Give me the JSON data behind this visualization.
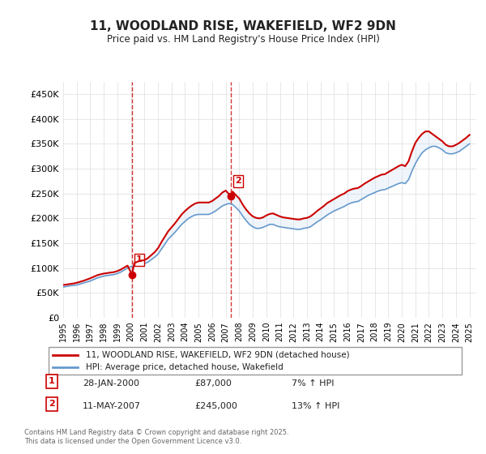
{
  "title": "11, WOODLAND RISE, WAKEFIELD, WF2 9DN",
  "subtitle": "Price paid vs. HM Land Registry's House Price Index (HPI)",
  "xlabel": "",
  "ylabel": "",
  "ylim": [
    0,
    475000
  ],
  "yticks": [
    0,
    50000,
    100000,
    150000,
    200000,
    250000,
    300000,
    350000,
    400000,
    450000
  ],
  "ytick_labels": [
    "£0",
    "£50K",
    "£100K",
    "£150K",
    "£200K",
    "£250K",
    "£300K",
    "£350K",
    "£400K",
    "£450K"
  ],
  "line1_color": "#cc0000",
  "line2_color": "#6699cc",
  "fill_color": "#cce0f5",
  "vline_color": "#cc0000",
  "legend_label1": "11, WOODLAND RISE, WAKEFIELD, WF2 9DN (detached house)",
  "legend_label2": "HPI: Average price, detached house, Wakefield",
  "transaction1_label": "1",
  "transaction1_date": "28-JAN-2000",
  "transaction1_price": "£87,000",
  "transaction1_hpi": "7% ↑ HPI",
  "transaction2_label": "2",
  "transaction2_date": "11-MAY-2007",
  "transaction2_price": "£245,000",
  "transaction2_hpi": "13% ↑ HPI",
  "footer": "Contains HM Land Registry data © Crown copyright and database right 2025.\nThis data is licensed under the Open Government Licence v3.0.",
  "hpi_x": [
    1995.0,
    1995.25,
    1995.5,
    1995.75,
    1996.0,
    1996.25,
    1996.5,
    1996.75,
    1997.0,
    1997.25,
    1997.5,
    1997.75,
    1998.0,
    1998.25,
    1998.5,
    1998.75,
    1999.0,
    1999.25,
    1999.5,
    1999.75,
    2000.0,
    2000.25,
    2000.5,
    2000.75,
    2001.0,
    2001.25,
    2001.5,
    2001.75,
    2002.0,
    2002.25,
    2002.5,
    2002.75,
    2003.0,
    2003.25,
    2003.5,
    2003.75,
    2004.0,
    2004.25,
    2004.5,
    2004.75,
    2005.0,
    2005.25,
    2005.5,
    2005.75,
    2006.0,
    2006.25,
    2006.5,
    2006.75,
    2007.0,
    2007.25,
    2007.5,
    2007.75,
    2008.0,
    2008.25,
    2008.5,
    2008.75,
    2009.0,
    2009.25,
    2009.5,
    2009.75,
    2010.0,
    2010.25,
    2010.5,
    2010.75,
    2011.0,
    2011.25,
    2011.5,
    2011.75,
    2012.0,
    2012.25,
    2012.5,
    2012.75,
    2013.0,
    2013.25,
    2013.5,
    2013.75,
    2014.0,
    2014.25,
    2014.5,
    2014.75,
    2015.0,
    2015.25,
    2015.5,
    2015.75,
    2016.0,
    2016.25,
    2016.5,
    2016.75,
    2017.0,
    2017.25,
    2017.5,
    2017.75,
    2018.0,
    2018.25,
    2018.5,
    2018.75,
    2019.0,
    2019.25,
    2019.5,
    2019.75,
    2020.0,
    2020.25,
    2020.5,
    2020.75,
    2021.0,
    2021.25,
    2021.5,
    2021.75,
    2022.0,
    2022.25,
    2022.5,
    2022.75,
    2023.0,
    2023.25,
    2023.5,
    2023.75,
    2024.0,
    2024.25,
    2024.5,
    2024.75,
    2025.0
  ],
  "hpi_y": [
    62000,
    63000,
    64500,
    65000,
    66000,
    68000,
    70000,
    72000,
    74000,
    77000,
    80000,
    82000,
    84000,
    85000,
    86000,
    87000,
    89000,
    92000,
    96000,
    100000,
    103000,
    105000,
    107000,
    108000,
    109000,
    112000,
    117000,
    122000,
    128000,
    138000,
    148000,
    158000,
    165000,
    172000,
    180000,
    188000,
    194000,
    200000,
    204000,
    207000,
    208000,
    208000,
    208000,
    208000,
    211000,
    215000,
    220000,
    225000,
    228000,
    230000,
    228000,
    222000,
    215000,
    205000,
    196000,
    188000,
    183000,
    180000,
    180000,
    182000,
    185000,
    188000,
    188000,
    185000,
    183000,
    182000,
    181000,
    180000,
    179000,
    178000,
    178000,
    180000,
    181000,
    183000,
    188000,
    193000,
    197000,
    202000,
    207000,
    211000,
    215000,
    218000,
    221000,
    224000,
    228000,
    231000,
    233000,
    234000,
    238000,
    242000,
    246000,
    249000,
    252000,
    255000,
    257000,
    258000,
    261000,
    264000,
    267000,
    270000,
    272000,
    270000,
    278000,
    295000,
    310000,
    322000,
    332000,
    338000,
    342000,
    345000,
    345000,
    342000,
    338000,
    332000,
    330000,
    330000,
    332000,
    335000,
    340000,
    345000,
    350000
  ],
  "red_x": [
    1995.0,
    1995.25,
    1995.5,
    1995.75,
    1996.0,
    1996.25,
    1996.5,
    1996.75,
    1997.0,
    1997.25,
    1997.5,
    1997.75,
    1998.0,
    1998.25,
    1998.5,
    1998.75,
    1999.0,
    1999.25,
    1999.5,
    1999.75,
    2000.08,
    2000.25,
    2000.5,
    2000.75,
    2001.0,
    2001.25,
    2001.5,
    2001.75,
    2002.0,
    2002.25,
    2002.5,
    2002.75,
    2003.0,
    2003.25,
    2003.5,
    2003.75,
    2004.0,
    2004.25,
    2004.5,
    2004.75,
    2005.0,
    2005.25,
    2005.5,
    2005.75,
    2006.0,
    2006.25,
    2006.5,
    2006.75,
    2007.0,
    2007.37,
    2007.5,
    2007.75,
    2008.0,
    2008.25,
    2008.5,
    2008.75,
    2009.0,
    2009.25,
    2009.5,
    2009.75,
    2010.0,
    2010.25,
    2010.5,
    2010.75,
    2011.0,
    2011.25,
    2011.5,
    2011.75,
    2012.0,
    2012.25,
    2012.5,
    2012.75,
    2013.0,
    2013.25,
    2013.5,
    2013.75,
    2014.0,
    2014.25,
    2014.5,
    2014.75,
    2015.0,
    2015.25,
    2015.5,
    2015.75,
    2016.0,
    2016.25,
    2016.5,
    2016.75,
    2017.0,
    2017.25,
    2017.5,
    2017.75,
    2018.0,
    2018.25,
    2018.5,
    2018.75,
    2019.0,
    2019.25,
    2019.5,
    2019.75,
    2020.0,
    2020.25,
    2020.5,
    2020.75,
    2021.0,
    2021.25,
    2021.5,
    2021.75,
    2022.0,
    2022.25,
    2022.5,
    2022.75,
    2023.0,
    2023.25,
    2023.5,
    2023.75,
    2024.0,
    2024.25,
    2024.5,
    2024.75,
    2025.0
  ],
  "red_y": [
    66000,
    67000,
    68000,
    69000,
    70500,
    72500,
    74500,
    77000,
    79500,
    82500,
    85500,
    87500,
    89000,
    90000,
    91000,
    92000,
    94000,
    97000,
    101000,
    105000,
    87000,
    110000,
    113000,
    115000,
    116000,
    120000,
    126000,
    132000,
    140000,
    152000,
    163000,
    174000,
    182000,
    190000,
    199000,
    208000,
    215000,
    221000,
    226000,
    230000,
    232000,
    232000,
    232000,
    232000,
    235000,
    240000,
    245000,
    252000,
    256000,
    245000,
    254000,
    247000,
    240000,
    228000,
    218000,
    210000,
    204000,
    201000,
    200000,
    202000,
    206000,
    209000,
    210000,
    207000,
    204000,
    202000,
    201000,
    200000,
    199000,
    198000,
    198000,
    200000,
    201000,
    204000,
    209000,
    215000,
    220000,
    225000,
    231000,
    235000,
    239000,
    243000,
    247000,
    250000,
    255000,
    258000,
    260000,
    261000,
    265000,
    270000,
    274000,
    278000,
    282000,
    285000,
    288000,
    289000,
    293000,
    297000,
    301000,
    305000,
    308000,
    305000,
    315000,
    335000,
    352000,
    362000,
    370000,
    375000,
    375000,
    370000,
    365000,
    360000,
    355000,
    348000,
    345000,
    345000,
    348000,
    352000,
    357000,
    362000,
    368000
  ],
  "transaction1_x": 2000.08,
  "transaction1_y": 87000,
  "transaction2_x": 2007.37,
  "transaction2_y": 245000,
  "vline1_x": 2000.08,
  "vline2_x": 2007.37,
  "xtick_years": [
    1995,
    1996,
    1997,
    1998,
    1999,
    2000,
    2001,
    2002,
    2003,
    2004,
    2005,
    2006,
    2007,
    2008,
    2009,
    2010,
    2011,
    2012,
    2013,
    2014,
    2015,
    2016,
    2017,
    2018,
    2019,
    2020,
    2021,
    2022,
    2023,
    2024,
    2025
  ],
  "background_color": "#ffffff",
  "grid_color": "#dddddd"
}
